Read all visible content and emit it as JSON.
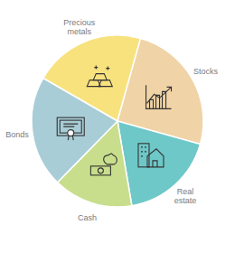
{
  "chart_data": {
    "type": "pie",
    "categories": [
      "Precious metals",
      "Stocks",
      "Real estate",
      "Cash",
      "Bonds"
    ],
    "values": [
      21,
      25,
      18,
      15,
      21
    ],
    "colors": [
      "#f8e27e",
      "#f0d3a6",
      "#6ec8c8",
      "#c8de8c",
      "#a8cdd6"
    ]
  }
}
